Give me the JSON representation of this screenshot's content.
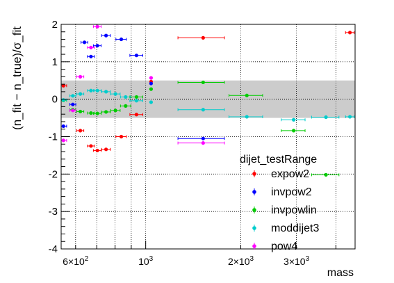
{
  "chart_data": {
    "type": "scatter",
    "title": "",
    "xlabel": "mass",
    "ylabel": "(n_fit − n_true)/σ_fit",
    "x_scale": "log",
    "xlim": [
      540,
      4600
    ],
    "ylim": [
      -4,
      2
    ],
    "grid": true,
    "legend_title": "dijet_testRange",
    "legend_position": "bottom-right",
    "band": {
      "low": -0.5,
      "high": 0.5,
      "color": "#cccccc"
    },
    "zero_line": true,
    "x_tick_labels": [
      {
        "x": 600,
        "base": "6×10",
        "exp": "2"
      },
      {
        "x": 1000,
        "base": "10",
        "exp": "3"
      },
      {
        "x": 2000,
        "base": "2×10",
        "exp": "3"
      },
      {
        "x": 3000,
        "base": "3×10",
        "exp": "3"
      }
    ],
    "y_ticks": [
      2,
      1,
      0,
      -1,
      -2,
      -3,
      -4
    ],
    "series": [
      {
        "name": "expow2",
        "color": "#ff0000",
        "x": [
          549,
          621,
          671,
          703,
          749,
          837,
          935,
          1040,
          1520,
          4430
        ],
        "xerr": [
          13,
          16,
          17,
          20,
          24,
          32,
          44,
          0,
          255,
          140
        ],
        "y": [
          0.36,
          -0.84,
          -1.25,
          -1.37,
          -1.34,
          -1.0,
          -0.41,
          0.47,
          1.64,
          1.78
        ]
      },
      {
        "name": "invpow2",
        "color": "#0000ff",
        "x": [
          549,
          588,
          640,
          671,
          703,
          749,
          837,
          935,
          1040,
          1520
        ],
        "xerr": [
          13,
          13,
          16,
          17,
          20,
          24,
          32,
          44,
          0,
          255
        ],
        "y": [
          -0.72,
          -0.14,
          1.52,
          1.14,
          1.43,
          1.7,
          1.6,
          1.17,
          0.42,
          -1.05
        ]
      },
      {
        "name": "invpowlin",
        "color": "#00cc00",
        "x": [
          549,
          588,
          621,
          671,
          703,
          749,
          802,
          864,
          935,
          1040,
          1520,
          2090,
          2940,
          3720
        ],
        "xerr": [
          13,
          13,
          16,
          17,
          20,
          24,
          28,
          32,
          44,
          0,
          255,
          255,
          255,
          370
        ],
        "y": [
          -0.03,
          -0.28,
          -0.33,
          -0.37,
          -0.38,
          -0.34,
          -0.3,
          -0.18,
          0.06,
          0.27,
          0.45,
          0.1,
          -0.84,
          -2.02
        ]
      },
      {
        "name": "moddijet3",
        "color": "#00cccc",
        "x": [
          549,
          588,
          621,
          671,
          703,
          749,
          802,
          864,
          935,
          1040,
          1520,
          2090,
          2940,
          3720,
          4430
        ],
        "xerr": [
          13,
          13,
          16,
          17,
          20,
          24,
          28,
          32,
          44,
          0,
          255,
          255,
          255,
          370,
          140
        ],
        "y": [
          -0.02,
          0.09,
          0.14,
          0.23,
          0.23,
          0.2,
          0.14,
          0.06,
          -0.04,
          -0.08,
          -0.28,
          -0.47,
          -0.55,
          -0.48,
          -0.47
        ]
      },
      {
        "name": "pow4",
        "color": "#ff00ff",
        "x": [
          549,
          588,
          621,
          671,
          703,
          1040,
          1520
        ],
        "xerr": [
          13,
          13,
          16,
          17,
          20,
          0,
          255
        ],
        "y": [
          -1.1,
          -0.3,
          0.6,
          1.38,
          1.94,
          0.57,
          -1.17
        ]
      }
    ]
  }
}
